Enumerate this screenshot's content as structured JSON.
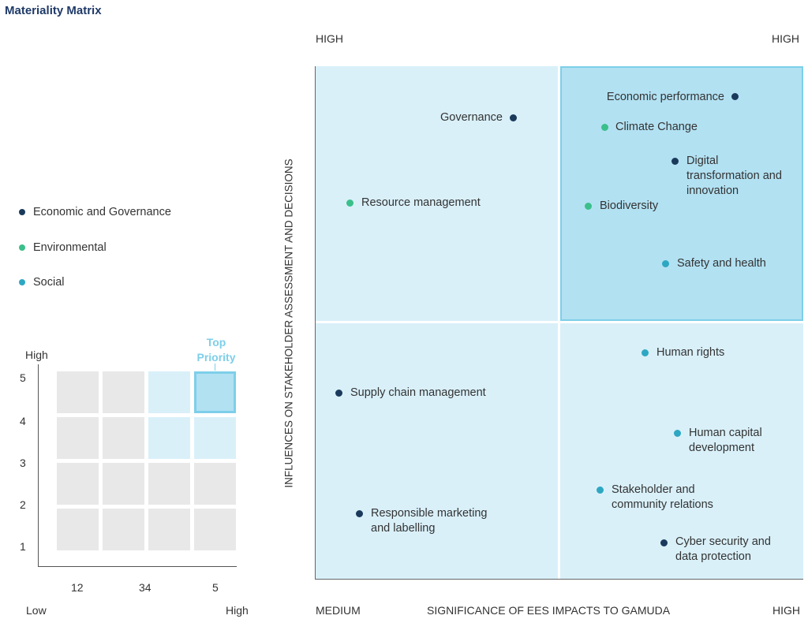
{
  "title": "Materiality Matrix",
  "colors": {
    "economic": "#1a3a5c",
    "environmental": "#3bbf8b",
    "social": "#2ea7c2",
    "quadrant_light": "#d9f0f9",
    "quadrant_top": "#b2e1f2",
    "quadrant_border": "#7dcfe9",
    "grid_gray": "#e8e8e8"
  },
  "legend": [
    {
      "label": "Economic and Governance",
      "color": "#1a3a5c"
    },
    {
      "label": "Environmental",
      "color": "#3bbf8b"
    },
    {
      "label": "Social",
      "color": "#2ea7c2"
    }
  ],
  "mini_matrix": {
    "y_top_label": "High",
    "top_priority": [
      "Top",
      "Priority"
    ],
    "y_ticks": [
      "5",
      "4",
      "3",
      "2",
      "1"
    ],
    "x_ticks": [
      "12",
      "34",
      "5"
    ],
    "x_low": "Low",
    "x_high": "High"
  },
  "chart_data": {
    "type": "scatter",
    "title": "Materiality Matrix",
    "xlabel": "SIGNIFICANCE OF EES IMPACTS TO GAMUDA",
    "ylabel": "INFLUENCES ON STAKEHOLDER ASSESSMENT AND DECISIONS",
    "x_min_label": "MEDIUM",
    "x_max_label": "HIGH",
    "y_max_label": "HIGH",
    "top_right_label": "HIGH",
    "xlim": [
      0,
      100
    ],
    "ylim": [
      0,
      100
    ],
    "points": [
      {
        "label": "Economic performance",
        "category": "Economic and Governance",
        "x": 86,
        "y": 94
      },
      {
        "label": "Governance",
        "category": "Economic and Governance",
        "x": 40,
        "y": 90
      },
      {
        "label": "Climate Change",
        "category": "Environmental",
        "x": 59,
        "y": 88
      },
      {
        "label": "Digital transformation and innovation",
        "category": "Economic and Governance",
        "x": 74,
        "y": 82
      },
      {
        "label": "Resource management",
        "category": "Environmental",
        "x": 7,
        "y": 73
      },
      {
        "label": "Biodiversity",
        "category": "Environmental",
        "x": 56,
        "y": 72
      },
      {
        "label": "Safety and health",
        "category": "Social",
        "x": 71,
        "y": 61
      },
      {
        "label": "Human rights",
        "category": "Social",
        "x": 68,
        "y": 44
      },
      {
        "label": "Supply chain management",
        "category": "Economic and Governance",
        "x": 5,
        "y": 36
      },
      {
        "label": "Human capital development",
        "category": "Social",
        "x": 74,
        "y": 29
      },
      {
        "label": "Stakeholder and community relations",
        "category": "Social",
        "x": 58,
        "y": 17
      },
      {
        "label": "Responsible marketing and labelling",
        "category": "Economic and Governance",
        "x": 9,
        "y": 12
      },
      {
        "label": "Cyber security and data protection",
        "category": "Economic and Governance",
        "x": 71,
        "y": 7
      }
    ]
  }
}
